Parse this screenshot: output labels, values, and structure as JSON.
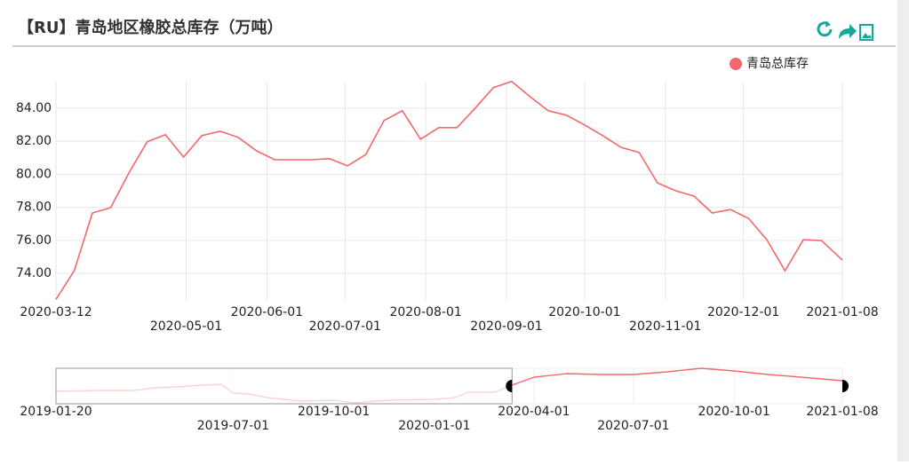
{
  "header": {
    "title": "【RU】青岛地区橡胶总库存（万吨）"
  },
  "chart_data": [
    {
      "type": "line",
      "x": [
        "2020-03-12",
        "2020-03-19",
        "2020-03-26",
        "2020-04-02",
        "2020-04-09",
        "2020-04-16",
        "2020-04-23",
        "2020-04-30",
        "2020-05-07",
        "2020-05-14",
        "2020-05-21",
        "2020-05-28",
        "2020-06-04",
        "2020-06-11",
        "2020-06-18",
        "2020-06-25",
        "2020-07-02",
        "2020-07-09",
        "2020-07-16",
        "2020-07-23",
        "2020-07-30",
        "2020-08-06",
        "2020-08-13",
        "2020-08-20",
        "2020-08-27",
        "2020-09-03",
        "2020-09-10",
        "2020-09-17",
        "2020-09-24",
        "2020-10-01",
        "2020-10-08",
        "2020-10-15",
        "2020-10-22",
        "2020-10-29",
        "2020-11-05",
        "2020-11-12",
        "2020-11-19",
        "2020-11-26",
        "2020-12-03",
        "2020-12-10",
        "2020-12-17",
        "2020-12-24",
        "2020-12-31",
        "2021-01-08"
      ],
      "series": [
        {
          "name": "青岛总库存",
          "color": "#f4676b",
          "values": [
            72.44,
            74.16,
            77.66,
            77.98,
            80.08,
            81.96,
            82.39,
            81.04,
            82.33,
            82.6,
            82.23,
            81.42,
            80.88,
            80.88,
            80.88,
            80.94,
            80.51,
            81.2,
            83.25,
            83.84,
            82.12,
            82.82,
            82.82,
            84.0,
            85.24,
            85.61,
            84.7,
            83.84,
            83.57,
            82.98,
            82.33,
            81.63,
            81.31,
            79.48,
            79.0,
            78.68,
            77.66,
            77.87,
            77.33,
            76.04,
            74.16,
            76.04,
            75.99,
            74.81
          ]
        }
      ],
      "xlim": [
        "2020-03-12",
        "2021-01-08"
      ],
      "xticks": [
        "2020-03-12",
        "2020-05-01",
        "2020-06-01",
        "2020-07-01",
        "2020-08-01",
        "2020-09-01",
        "2020-10-01",
        "2020-11-01",
        "2020-12-01",
        "2021-01-08"
      ],
      "ylim": [
        72.4,
        85.6
      ],
      "yticks": [
        {
          "value": 74,
          "label": "74.00"
        },
        {
          "value": 76,
          "label": "76.00"
        },
        {
          "value": 78,
          "label": "78.00"
        },
        {
          "value": 80,
          "label": "80.00"
        },
        {
          "value": 82,
          "label": "82.00"
        },
        {
          "value": 84,
          "label": "84.00"
        }
      ],
      "grid": true,
      "legend": "top-right"
    },
    {
      "type": "line",
      "x": [
        "2019-01-20",
        "2019-03-01",
        "2019-04-01",
        "2019-04-20",
        "2019-05-10",
        "2019-06-01",
        "2019-06-20",
        "2019-07-01",
        "2019-07-15",
        "2019-08-01",
        "2019-09-01",
        "2019-10-01",
        "2019-10-20",
        "2019-11-20",
        "2020-01-01",
        "2020-01-20",
        "2020-02-01",
        "2020-02-25",
        "2020-03-12",
        "2020-04-01",
        "2020-05-01",
        "2020-06-01",
        "2020-07-01",
        "2020-08-01",
        "2020-09-01",
        "2020-10-01",
        "2020-11-01",
        "2020-12-01",
        "2021-01-08"
      ],
      "series": [
        {
          "color": "#f4676b",
          "values": [
            67.2,
            68,
            68,
            70.4,
            71.2,
            72.8,
            73.6,
            65.6,
            64.8,
            61.6,
            58.4,
            59.2,
            56.8,
            59.2,
            60,
            61.6,
            66.4,
            66.4,
            72.8,
            80,
            83.2,
            82.4,
            82.4,
            84.8,
            88,
            85.6,
            82.4,
            80,
            76.8
          ]
        }
      ],
      "xlim": [
        "2019-01-20",
        "2021-01-08"
      ],
      "xticks": [
        "2019-01-20",
        "2019-07-01",
        "2019-10-01",
        "2020-01-01",
        "2020-04-01",
        "2020-07-01",
        "2020-10-01",
        "2021-01-08"
      ],
      "ylim": [
        56,
        88
      ],
      "selection": [
        "2020-03-12",
        "2021-01-08"
      ]
    }
  ]
}
